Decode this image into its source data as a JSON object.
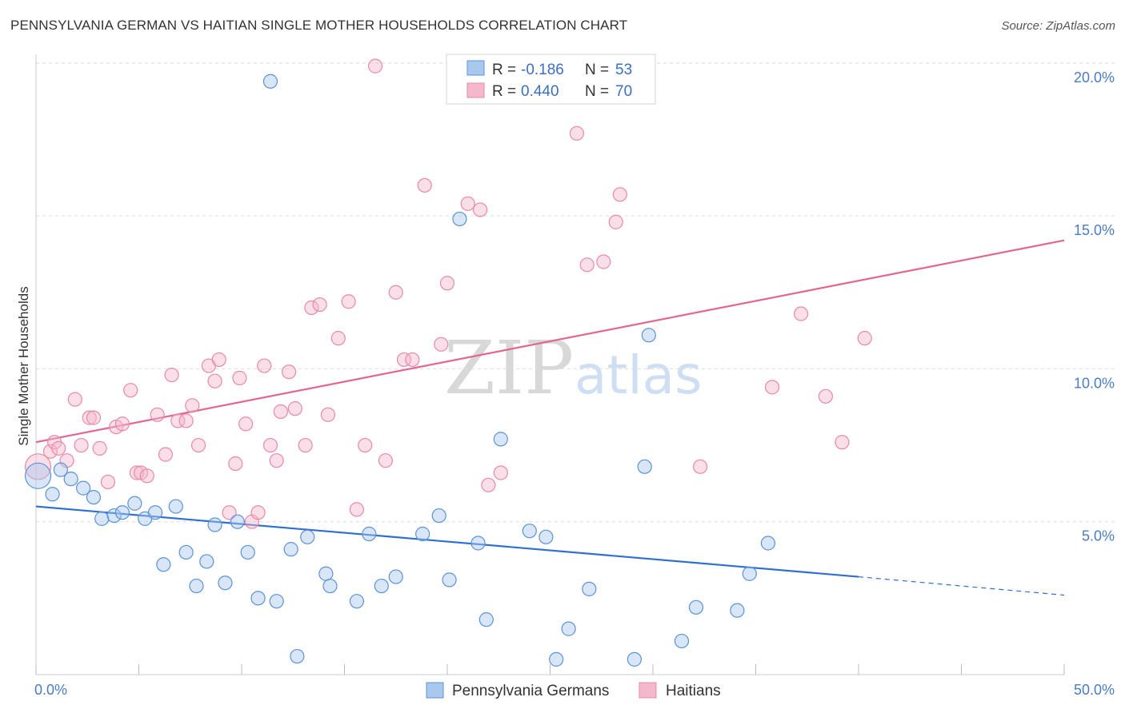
{
  "header": {
    "title": "PENNSYLVANIA GERMAN VS HAITIAN SINGLE MOTHER HOUSEHOLDS CORRELATION CHART",
    "source": "Source: ZipAtlas.com"
  },
  "colors": {
    "blue_fill": "#a9c8ee",
    "blue_stroke": "#5b93d8",
    "blue_line": "#2f6fd0",
    "pink_fill": "#f5b7cb",
    "pink_stroke": "#e889a8",
    "pink_line": "#e2668f",
    "grid": "#dddddd",
    "tick_text": "#4a7cc6"
  },
  "legend_top": {
    "rows": [
      {
        "r_label": "R = ",
        "r_value": "-0.186",
        "n_label": "N = ",
        "n_value": "53",
        "series": "blue"
      },
      {
        "r_label": "R = ",
        "r_value": "0.440",
        "n_label": "N = ",
        "n_value": "70",
        "series": "pink"
      }
    ]
  },
  "watermark": {
    "zip": "ZIP",
    "atlas": "atlas"
  },
  "chart_data": {
    "type": "scatter",
    "title": "PENNSYLVANIA GERMAN VS HAITIAN SINGLE MOTHER HOUSEHOLDS CORRELATION CHART",
    "xlabel": "",
    "ylabel": "Single Mother Households",
    "xlim": [
      0,
      50
    ],
    "ylim": [
      0,
      20.5
    ],
    "x_tick_labels": [
      "0.0%",
      "50.0%"
    ],
    "y_ticks": [
      {
        "value": 5,
        "label": "5.0%"
      },
      {
        "value": 10,
        "label": "10.0%"
      },
      {
        "value": 15,
        "label": "15.0%"
      },
      {
        "value": 20,
        "label": "20.0%"
      }
    ],
    "grid": "horizontal dashed",
    "legend": "top-center and bottom-center",
    "series": [
      {
        "name": "Pennsylvania Germans",
        "color": "blue",
        "trend": {
          "x": [
            0,
            40,
            50
          ],
          "y": [
            5.5,
            3.2,
            2.6
          ],
          "solid_until": 40
        },
        "points": [
          [
            0.1,
            6.5
          ],
          [
            0.8,
            5.9
          ],
          [
            1.2,
            6.7
          ],
          [
            1.7,
            6.4
          ],
          [
            2.3,
            6.1
          ],
          [
            2.8,
            5.8
          ],
          [
            3.2,
            5.1
          ],
          [
            3.8,
            5.2
          ],
          [
            4.2,
            5.3
          ],
          [
            4.8,
            5.6
          ],
          [
            5.3,
            5.1
          ],
          [
            5.8,
            5.3
          ],
          [
            6.2,
            3.6
          ],
          [
            6.8,
            5.5
          ],
          [
            7.3,
            4.0
          ],
          [
            7.8,
            2.9
          ],
          [
            8.3,
            3.7
          ],
          [
            8.7,
            4.9
          ],
          [
            9.2,
            3.0
          ],
          [
            9.8,
            5.0
          ],
          [
            10.3,
            4.0
          ],
          [
            10.8,
            2.5
          ],
          [
            11.4,
            19.4
          ],
          [
            11.7,
            2.4
          ],
          [
            12.4,
            4.1
          ],
          [
            12.7,
            0.6
          ],
          [
            13.2,
            4.5
          ],
          [
            14.1,
            3.3
          ],
          [
            14.3,
            2.9
          ],
          [
            15.6,
            2.4
          ],
          [
            16.2,
            4.6
          ],
          [
            16.8,
            2.9
          ],
          [
            17.5,
            3.2
          ],
          [
            18.8,
            4.6
          ],
          [
            19.6,
            5.2
          ],
          [
            20.1,
            3.1
          ],
          [
            20.6,
            14.9
          ],
          [
            21.5,
            4.3
          ],
          [
            21.9,
            1.8
          ],
          [
            22.6,
            7.7
          ],
          [
            24.0,
            4.7
          ],
          [
            24.8,
            4.5
          ],
          [
            25.3,
            0.5
          ],
          [
            25.9,
            1.5
          ],
          [
            26.9,
            2.8
          ],
          [
            29.1,
            0.5
          ],
          [
            29.6,
            6.8
          ],
          [
            29.8,
            11.1
          ],
          [
            31.4,
            1.1
          ],
          [
            32.1,
            2.2
          ],
          [
            34.1,
            2.1
          ],
          [
            34.7,
            3.3
          ],
          [
            35.6,
            4.3
          ]
        ]
      },
      {
        "name": "Haitians",
        "color": "pink",
        "trend": {
          "x": [
            0,
            50
          ],
          "y": [
            7.6,
            14.2
          ]
        },
        "points": [
          [
            0.1,
            6.8
          ],
          [
            0.7,
            7.3
          ],
          [
            0.9,
            7.6
          ],
          [
            1.1,
            7.4
          ],
          [
            1.5,
            7.0
          ],
          [
            1.9,
            9.0
          ],
          [
            2.2,
            7.5
          ],
          [
            2.6,
            8.4
          ],
          [
            2.8,
            8.4
          ],
          [
            3.1,
            7.4
          ],
          [
            3.5,
            6.3
          ],
          [
            3.9,
            8.1
          ],
          [
            4.2,
            8.2
          ],
          [
            4.6,
            9.3
          ],
          [
            4.9,
            6.6
          ],
          [
            5.1,
            6.6
          ],
          [
            5.4,
            6.5
          ],
          [
            5.9,
            8.5
          ],
          [
            6.3,
            7.2
          ],
          [
            6.6,
            9.8
          ],
          [
            6.9,
            8.3
          ],
          [
            7.3,
            8.3
          ],
          [
            7.6,
            8.8
          ],
          [
            7.9,
            7.5
          ],
          [
            8.4,
            10.1
          ],
          [
            8.7,
            9.6
          ],
          [
            8.9,
            10.3
          ],
          [
            9.4,
            5.3
          ],
          [
            9.7,
            6.9
          ],
          [
            9.9,
            9.7
          ],
          [
            10.2,
            8.2
          ],
          [
            10.5,
            5.0
          ],
          [
            10.8,
            5.3
          ],
          [
            11.1,
            10.1
          ],
          [
            11.4,
            7.5
          ],
          [
            11.7,
            7.0
          ],
          [
            11.9,
            8.6
          ],
          [
            12.3,
            9.9
          ],
          [
            12.6,
            8.7
          ],
          [
            13.1,
            7.5
          ],
          [
            13.4,
            12.0
          ],
          [
            13.8,
            12.1
          ],
          [
            14.2,
            8.5
          ],
          [
            14.7,
            11.0
          ],
          [
            15.2,
            12.2
          ],
          [
            15.6,
            5.4
          ],
          [
            16.0,
            7.5
          ],
          [
            16.5,
            19.9
          ],
          [
            17.0,
            7.0
          ],
          [
            17.5,
            12.5
          ],
          [
            17.9,
            10.3
          ],
          [
            18.3,
            10.3
          ],
          [
            18.9,
            16.0
          ],
          [
            19.7,
            10.8
          ],
          [
            20.0,
            12.8
          ],
          [
            21.0,
            15.4
          ],
          [
            21.6,
            15.2
          ],
          [
            22.0,
            6.2
          ],
          [
            22.6,
            6.6
          ],
          [
            26.3,
            17.7
          ],
          [
            26.8,
            13.4
          ],
          [
            27.6,
            13.5
          ],
          [
            28.2,
            14.8
          ],
          [
            28.4,
            15.7
          ],
          [
            32.3,
            6.8
          ],
          [
            35.8,
            9.4
          ],
          [
            37.2,
            11.8
          ],
          [
            38.4,
            9.1
          ],
          [
            39.2,
            7.6
          ],
          [
            40.3,
            11.0
          ]
        ]
      }
    ]
  },
  "legend_bottom": {
    "items": [
      {
        "label": "Pennsylvania Germans",
        "series": "blue"
      },
      {
        "label": "Haitians",
        "series": "pink"
      }
    ]
  }
}
